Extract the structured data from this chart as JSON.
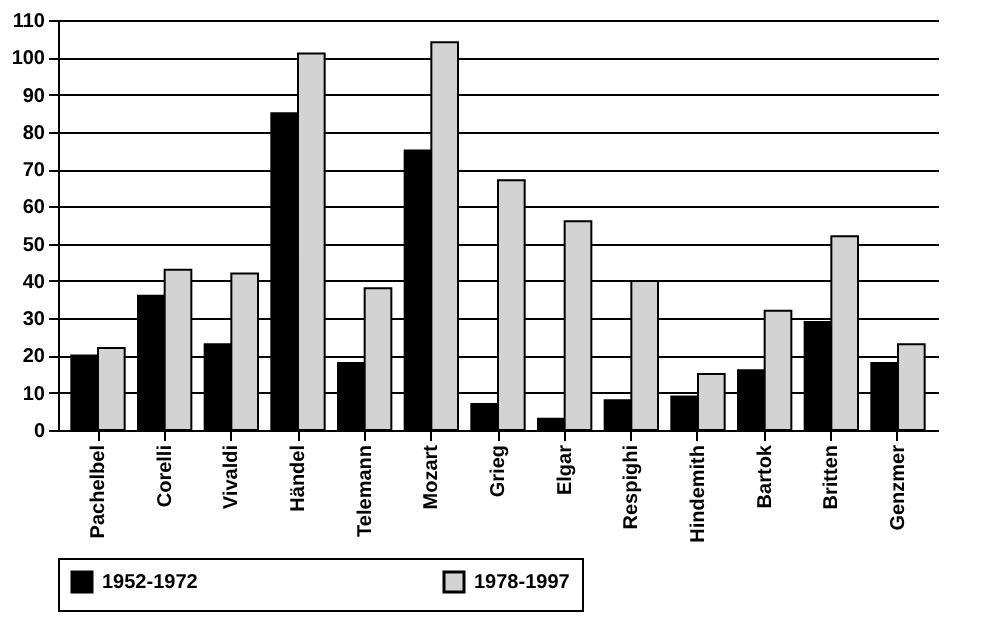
{
  "chart_data": {
    "type": "bar",
    "categories": [
      "Pachelbel",
      "Corelli",
      "Vivaldi",
      "Händel",
      "Telemann",
      "Mozart",
      "Grieg",
      "Elgar",
      "Respighi",
      "Hindemith",
      "Bartok",
      "Britten",
      "Genzmer"
    ],
    "series": [
      {
        "name": "1952-1972",
        "color": "#000000",
        "values": [
          20,
          36,
          23,
          85,
          18,
          75,
          7,
          3,
          8,
          9,
          16,
          29,
          18
        ]
      },
      {
        "name": "1978-1997",
        "color": "#d3d3d3",
        "values": [
          22,
          43,
          42,
          101,
          38,
          104,
          67,
          56,
          40,
          15,
          32,
          52,
          23
        ]
      }
    ],
    "ylim": [
      0,
      110
    ],
    "yticks": [
      0,
      10,
      20,
      30,
      40,
      50,
      60,
      70,
      80,
      90,
      100,
      110
    ],
    "grid": "y",
    "legend": "bottom"
  }
}
